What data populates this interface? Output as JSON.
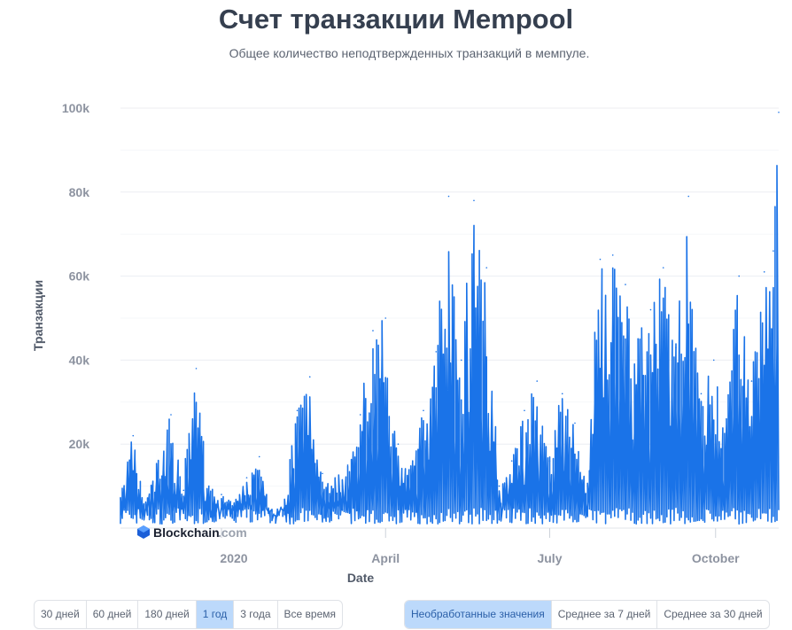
{
  "title": "Счет транзакции Mempool",
  "subtitle": "Общее количество неподтвержденных транзакций в мемпуле.",
  "watermark": {
    "brand": "Blockchain",
    "domain": ".com"
  },
  "range_buttons": [
    {
      "label": "30 дней",
      "active": false
    },
    {
      "label": "60 дней",
      "active": false
    },
    {
      "label": "180 дней",
      "active": false
    },
    {
      "label": "1 год",
      "active": true
    },
    {
      "label": "3 года",
      "active": false
    },
    {
      "label": "Все время",
      "active": false
    }
  ],
  "mode_buttons": [
    {
      "label": "Необработанные значения",
      "active": true
    },
    {
      "label": "Среднее за 7 дней",
      "active": false
    },
    {
      "label": "Среднее за 30 дней",
      "active": false
    }
  ],
  "chart_data": {
    "type": "line",
    "xlabel": "Date",
    "ylabel": "Транзакции",
    "ylim": [
      0,
      100000
    ],
    "xlim": [
      "2019-11-06",
      "2020-11-05"
    ],
    "grid": true,
    "line_color": "#1a73e8",
    "y_ticks": [
      {
        "value": 20000,
        "label": "20k"
      },
      {
        "value": 40000,
        "label": "40k"
      },
      {
        "value": 60000,
        "label": "60k"
      },
      {
        "value": 80000,
        "label": "80k"
      },
      {
        "value": 100000,
        "label": "100k"
      }
    ],
    "x_ticks": [
      {
        "value": "2020-01-01",
        "label": "2020"
      },
      {
        "value": "2020-04-01",
        "label": "April"
      },
      {
        "value": "2020-07-01",
        "label": "July"
      },
      {
        "value": "2020-10-01",
        "label": "October"
      }
    ],
    "series": [
      {
        "x": [
          "2019-11-06",
          "2019-11-13",
          "2019-11-20",
          "2019-11-27",
          "2019-12-04",
          "2019-12-11",
          "2019-12-18",
          "2019-12-25",
          "2020-01-01",
          "2020-01-08",
          "2020-01-15",
          "2020-01-22",
          "2020-01-29",
          "2020-02-05",
          "2020-02-12",
          "2020-02-19",
          "2020-02-26",
          "2020-03-04",
          "2020-03-11",
          "2020-03-18",
          "2020-03-25",
          "2020-04-01",
          "2020-04-08",
          "2020-04-15",
          "2020-04-22",
          "2020-04-29",
          "2020-05-06",
          "2020-05-13",
          "2020-05-20",
          "2020-05-27",
          "2020-06-03",
          "2020-06-10",
          "2020-06-17",
          "2020-06-24",
          "2020-07-01",
          "2020-07-08",
          "2020-07-15",
          "2020-07-22",
          "2020-07-29",
          "2020-08-05",
          "2020-08-12",
          "2020-08-19",
          "2020-08-26",
          "2020-09-02",
          "2020-09-09",
          "2020-09-16",
          "2020-09-23",
          "2020-09-30",
          "2020-10-07",
          "2020-10-14",
          "2020-10-21",
          "2020-10-28",
          "2020-11-02",
          "2020-11-05"
        ],
        "values": [
          7000,
          22000,
          6000,
          16000,
          27000,
          9000,
          38000,
          10000,
          8000,
          6000,
          12000,
          17000,
          4000,
          6000,
          28000,
          36000,
          13000,
          12000,
          15000,
          27000,
          47000,
          50000,
          20000,
          14000,
          28000,
          42000,
          79000,
          40000,
          78000,
          62000,
          10000,
          16000,
          28000,
          35000,
          16000,
          32000,
          25000,
          10000,
          64000,
          65000,
          58000,
          45000,
          52000,
          62000,
          43000,
          79000,
          32000,
          40000,
          26000,
          60000,
          35000,
          61000,
          66000,
          99000
        ]
      }
    ]
  }
}
